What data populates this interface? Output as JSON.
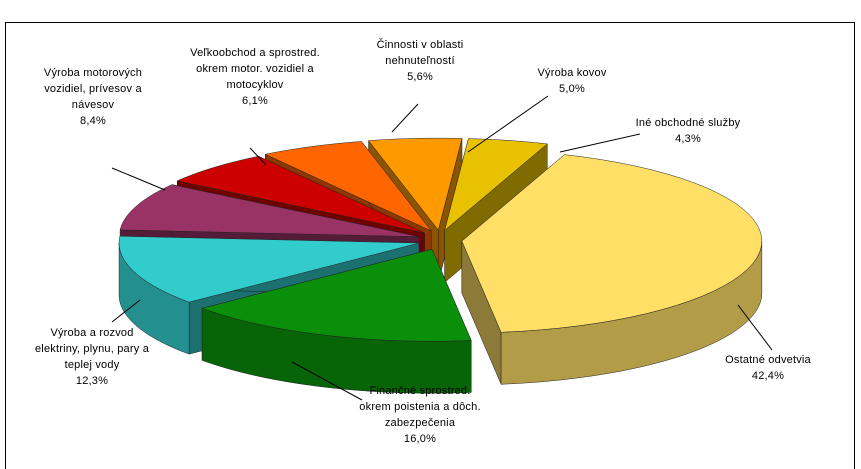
{
  "chart_data": {
    "type": "pie",
    "categories": [
      "Ostatné odvetvia",
      "Finančné sprostred.\nokrem poistenia a dôch.\nzabezpečenia",
      "Výroba a rozvod\nelektriny, plynu, pary a\nteplej vody",
      "Výroba motorových\nvozidiel, prívesov a\nnávesov",
      "Veľkoobchod a sprostred.\nokrem motor. vozidiel a\nmotocyklov",
      "Činnosti v oblasti\nnehnuteľností",
      "Výroba kovov",
      "Iné obchodné služby"
    ],
    "values": [
      42.4,
      16.0,
      12.3,
      8.4,
      6.1,
      5.6,
      5.0,
      4.3
    ],
    "value_labels": [
      "42,4%",
      "16,0%",
      "12,3%",
      "8,4%",
      "6,1%",
      "5,6%",
      "5,0%",
      "4,3%"
    ],
    "colors": [
      "#ffdf66",
      "#0a8f0a",
      "#33cccc",
      "#993366",
      "#cc0000",
      "#ff6600",
      "#ff9900",
      "#e8c200"
    ]
  }
}
